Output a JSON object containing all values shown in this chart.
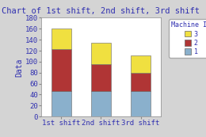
{
  "title": "Chart of 1st shift, 2nd shift, 3rd shift",
  "categories": [
    "1st shift",
    "2nd shift",
    "3rd shift"
  ],
  "machine1": [
    47,
    47,
    47
  ],
  "machine2": [
    76,
    48,
    32
  ],
  "machine3": [
    37,
    40,
    33
  ],
  "color1": "#8ab0cc",
  "color2": "#b03535",
  "color3": "#f0e040",
  "ylabel": "Data",
  "ylim": [
    0,
    180
  ],
  "yticks": [
    0,
    20,
    40,
    60,
    80,
    100,
    120,
    140,
    160,
    180
  ],
  "legend_title": "Machine ID",
  "background_color": "#d4d4d4",
  "plot_bg": "#ffffff",
  "title_color": "#3030b0",
  "label_color": "#3030b0",
  "tick_color": "#3030b0"
}
